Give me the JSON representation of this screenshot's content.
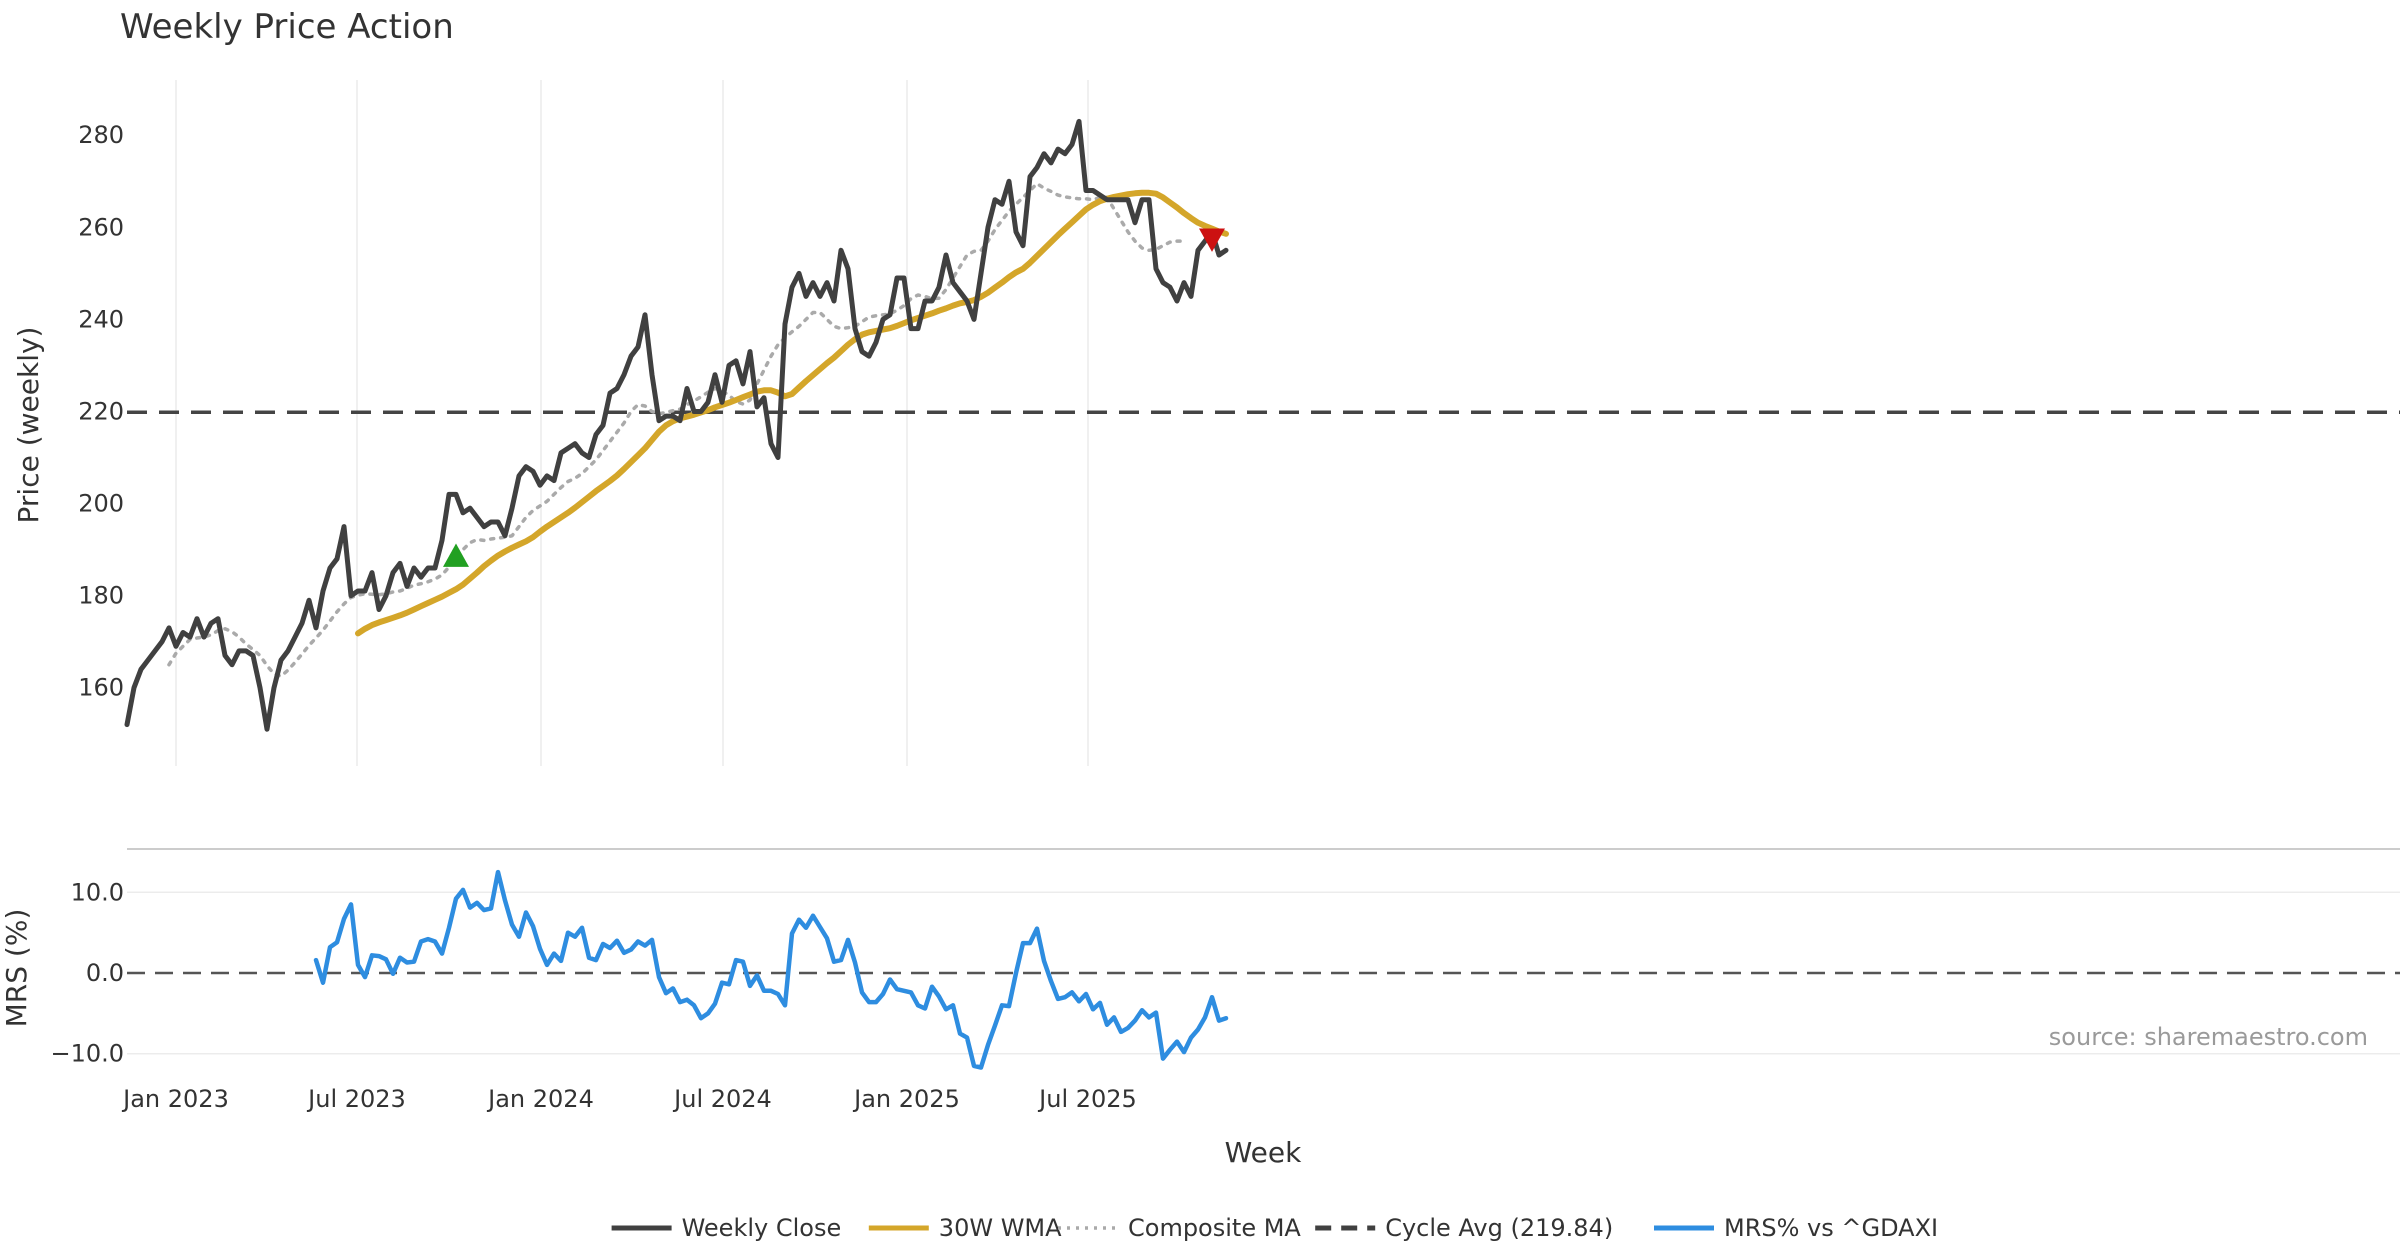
{
  "chart_data": {
    "type": "line",
    "title": "Weekly Price Action",
    "xlabel": "Week",
    "source": "source: sharemaestro.com",
    "x_ticks": [
      "Jan 2023",
      "Jul 2023",
      "Jan 2024",
      "Jul 2024",
      "Jan 2025",
      "Jul 2025"
    ],
    "x_start": "2022-11-13",
    "x_step_days": 7,
    "price_panel": {
      "ylabel": "Price (weekly)",
      "ylim": [
        143,
        292
      ],
      "y_ticks": [
        160,
        180,
        200,
        220,
        240,
        260,
        280
      ],
      "cycle_avg": 219.84,
      "series": [
        {
          "name": "Weekly Close",
          "color": "#404040",
          "start_index": 0,
          "values": [
            152,
            160,
            164,
            166,
            168,
            170,
            173,
            169,
            172,
            171,
            175,
            171,
            174,
            175,
            167,
            165,
            168,
            168,
            167,
            160,
            151,
            160,
            166,
            168,
            171,
            174,
            179,
            173,
            181,
            186,
            188,
            195,
            180,
            181,
            181,
            185,
            177,
            180,
            185,
            187,
            182,
            186,
            184,
            186,
            186,
            192,
            202,
            202,
            198,
            199,
            197,
            195,
            196,
            196,
            193,
            199,
            206,
            208,
            207,
            204,
            206,
            205,
            211,
            212,
            213,
            211,
            210,
            215,
            217,
            224,
            225,
            228,
            232,
            234,
            241,
            228,
            218,
            219,
            219,
            218,
            225,
            220,
            220,
            222,
            228,
            222,
            230,
            231,
            226,
            233,
            221,
            223,
            213,
            210,
            239,
            247,
            250,
            245,
            248,
            245,
            248,
            244,
            255,
            251,
            238,
            233,
            232,
            235,
            240,
            241,
            249,
            249,
            238,
            238,
            244,
            244,
            247,
            254,
            248,
            246,
            244,
            240,
            250,
            260,
            266,
            265,
            270,
            259,
            256,
            271,
            273,
            276,
            274,
            277,
            276,
            278,
            283,
            268,
            268,
            267,
            266,
            266,
            266,
            266,
            261,
            266,
            266,
            251,
            248,
            247,
            244,
            248,
            245,
            255,
            257,
            259,
            254,
            255
          ]
        },
        {
          "name": "30W WMA",
          "color": "#d4a62a",
          "start_index": 33,
          "values": [
            171.8,
            172.8,
            173.6,
            174.2,
            174.7,
            175.2,
            175.7,
            176.3,
            177.0,
            177.7,
            178.4,
            179.1,
            179.8,
            180.6,
            181.4,
            182.4,
            183.7,
            185.0,
            186.4,
            187.6,
            188.7,
            189.6,
            190.4,
            191.1,
            191.8,
            192.7,
            193.9,
            195.0,
            196.0,
            197.0,
            198.0,
            199.1,
            200.3,
            201.5,
            202.7,
            203.8,
            204.9,
            206.1,
            207.5,
            209.0,
            210.5,
            212.0,
            213.8,
            215.6,
            217.0,
            217.9,
            218.5,
            218.9,
            219.3,
            219.8,
            220.3,
            220.9,
            221.4,
            221.9,
            222.5,
            223.1,
            223.7,
            224.3,
            224.6,
            224.6,
            224.1,
            223.3,
            223.8,
            225.2,
            226.6,
            227.9,
            229.2,
            230.5,
            231.7,
            233.1,
            234.5,
            235.7,
            236.7,
            237.2,
            237.5,
            237.8,
            238.1,
            238.6,
            239.2,
            239.8,
            240.3,
            240.8,
            241.3,
            241.9,
            242.4,
            243.0,
            243.5,
            243.8,
            244.2,
            244.9,
            245.8,
            246.9,
            248.0,
            249.2,
            250.2,
            251.0,
            252.3,
            253.8,
            255.3,
            256.8,
            258.3,
            259.7,
            261.1,
            262.5,
            263.9,
            264.9,
            265.7,
            266.2,
            266.6,
            266.9,
            267.2,
            267.4,
            267.5,
            267.5,
            267.3,
            266.5,
            265.4,
            264.3,
            263.1,
            262.0,
            261.0,
            260.3,
            259.7,
            259.1,
            258.6
          ]
        },
        {
          "name": "Composite MA",
          "color": "#aaaaaa",
          "start_index": 6,
          "values": [
            165.0,
            167.5,
            169.0,
            170.5,
            170.8,
            171.0,
            171.5,
            172.4,
            172.8,
            172.2,
            171.0,
            169.5,
            168.3,
            167.0,
            164.8,
            163.0,
            162.5,
            163.8,
            165.5,
            167.3,
            169.2,
            170.8,
            172.5,
            174.5,
            176.5,
            178.2,
            179.6,
            180.1,
            180.4,
            180.3,
            180.2,
            180.4,
            180.8,
            181.0,
            181.6,
            182.3,
            182.6,
            183.0,
            183.6,
            184.5,
            186.2,
            188.2,
            190.0,
            191.5,
            192.2,
            192.0,
            192.3,
            192.5,
            192.7,
            193.0,
            195.0,
            197.0,
            198.5,
            199.5,
            200.5,
            202.0,
            203.5,
            204.8,
            205.5,
            206.5,
            208.0,
            209.5,
            211.5,
            213.5,
            215.5,
            217.5,
            220.0,
            221.5,
            221.2,
            220.0,
            219.5,
            219.8,
            220.2,
            220.5,
            221.5,
            222.3,
            223.2,
            224.2,
            225.0,
            224.5,
            223.5,
            222.2,
            221.6,
            222.5,
            226.0,
            229.0,
            232.0,
            234.5,
            236.0,
            237.3,
            238.5,
            240.0,
            241.5,
            241.5,
            240.0,
            238.5,
            238.0,
            238.2,
            238.5,
            239.5,
            240.5,
            240.8,
            241.0,
            241.2,
            242.0,
            243.0,
            244.5,
            245.3,
            245.0,
            244.5,
            244.6,
            246.5,
            249.0,
            251.5,
            254.0,
            254.8,
            255.0,
            257.0,
            259.5,
            261.5,
            263.5,
            265.0,
            266.5,
            268.0,
            269.5,
            268.5,
            267.8,
            267.0,
            266.6,
            266.4,
            266.2,
            266.2,
            266.0,
            266.5,
            266.5,
            264.0,
            261.5,
            259.0,
            257.0,
            255.5,
            255.0,
            255.2,
            256.0,
            256.8,
            257.0,
            257.0
          ]
        }
      ],
      "markers": [
        {
          "type": "buy",
          "symbol": "triangle-up",
          "color": "#22a022",
          "index": 47,
          "value": 188.5
        },
        {
          "type": "sell",
          "symbol": "triangle-down",
          "color": "#cc1111",
          "index": 155,
          "value": 257.5
        }
      ]
    },
    "mrs_panel": {
      "ylabel": "MRS (%)",
      "ylim": [
        -13.5,
        14
      ],
      "y_ticks": [
        10.0,
        0.0,
        -10.0
      ],
      "y_tick_labels": [
        "10.0",
        "0.0",
        "−10.0"
      ],
      "series": [
        {
          "name": "MRS% vs ^GDAXI",
          "color": "#2e8de0",
          "start_index": 27,
          "values": [
            1.6,
            -1.2,
            3.2,
            3.8,
            6.7,
            8.5,
            1.0,
            -0.5,
            2.2,
            2.1,
            1.7,
            -0.1,
            1.9,
            1.3,
            1.4,
            3.9,
            4.2,
            3.9,
            2.4,
            5.6,
            9.2,
            10.3,
            8.1,
            8.7,
            7.8,
            8.0,
            12.5,
            9.0,
            6.0,
            4.5,
            7.5,
            5.8,
            3.0,
            1.0,
            2.4,
            1.5,
            5.0,
            4.5,
            5.6,
            1.9,
            1.6,
            3.6,
            3.1,
            4.0,
            2.5,
            2.9,
            3.9,
            3.4,
            4.1,
            -0.5,
            -2.5,
            -1.9,
            -3.6,
            -3.3,
            -4.0,
            -5.6,
            -5.0,
            -3.8,
            -1.2,
            -1.4,
            1.6,
            1.4,
            -1.6,
            -0.3,
            -2.2,
            -2.2,
            -2.6,
            -4.0,
            4.9,
            6.6,
            5.6,
            7.1,
            5.7,
            4.3,
            1.4,
            1.6,
            4.1,
            1.3,
            -2.4,
            -3.6,
            -3.6,
            -2.6,
            -0.8,
            -2.0,
            -2.2,
            -2.4,
            -4.0,
            -4.4,
            -1.7,
            -2.9,
            -4.5,
            -4.0,
            -7.5,
            -8.0,
            -11.5,
            -11.7,
            -8.9,
            -6.5,
            -4.0,
            -4.1,
            0.0,
            3.7,
            3.7,
            5.5,
            1.5,
            -1.0,
            -3.2,
            -3.0,
            -2.4,
            -3.5,
            -2.6,
            -4.5,
            -3.7,
            -6.4,
            -5.5,
            -7.3,
            -6.8,
            -5.9,
            -4.6,
            -5.5,
            -4.9,
            -10.6,
            -9.5,
            -8.5,
            -9.8,
            -8.0,
            -7.0,
            -5.5,
            -3.0,
            -5.9,
            -5.6
          ]
        }
      ]
    },
    "legend": {
      "position": "bottom-center",
      "entries": [
        {
          "label": "Weekly Close",
          "style": "solid",
          "color": "#404040"
        },
        {
          "label": "30W WMA",
          "style": "solid",
          "color": "#d4a62a"
        },
        {
          "label": "Composite MA",
          "style": "dotted",
          "color": "#aaaaaa"
        },
        {
          "label": "Cycle Avg (219.84)",
          "style": "dashed",
          "color": "#404040"
        },
        {
          "label": "MRS% vs ^GDAXI",
          "style": "solid",
          "color": "#2e8de0"
        }
      ]
    }
  }
}
